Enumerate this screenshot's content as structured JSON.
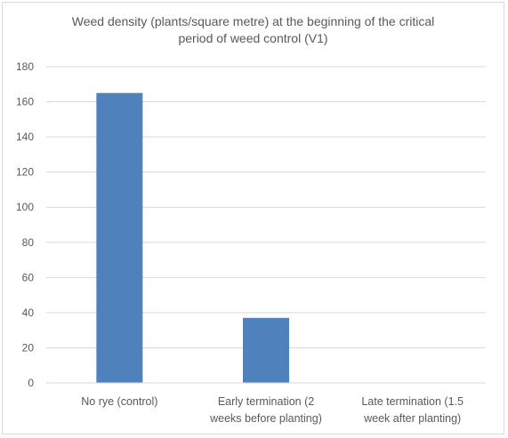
{
  "chart_data": {
    "type": "bar",
    "title_lines": [
      "Weed density (plants/square metre) at the beginning of the critical",
      "period of weed control (V1)"
    ],
    "categories": [
      [
        "No rye (control)"
      ],
      [
        "Early termination (2",
        "weeks before planting)"
      ],
      [
        "Late termination (1.5",
        "week after planting)"
      ]
    ],
    "values": [
      165,
      37,
      0
    ],
    "ylim": [
      0,
      180
    ],
    "yticks": [
      0,
      20,
      40,
      60,
      80,
      100,
      120,
      140,
      160,
      180
    ],
    "grid": true,
    "bar_color": "#4f81bd",
    "grid_color": "#d9d9d9"
  }
}
